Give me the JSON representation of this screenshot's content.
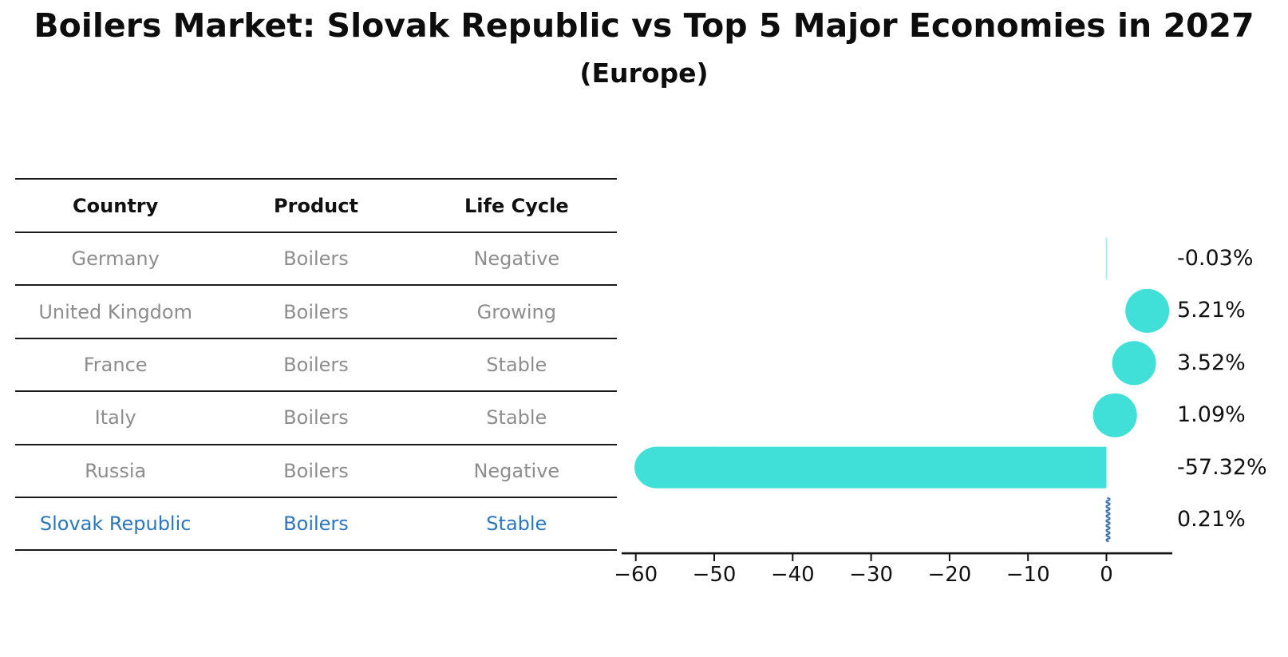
{
  "title": "Boilers Market: Slovak Republic vs Top 5 Major Economies in 2027",
  "subtitle": "(Europe)",
  "table": {
    "headers": [
      "Country",
      "Product",
      "Life Cycle"
    ],
    "rows": [
      {
        "country": "Germany",
        "product": "Boilers",
        "life_cycle": "Negative",
        "highlight": false
      },
      {
        "country": "United Kingdom",
        "product": "Boilers",
        "life_cycle": "Growing",
        "highlight": false
      },
      {
        "country": "France",
        "product": "Boilers",
        "life_cycle": "Stable",
        "highlight": false
      },
      {
        "country": "Italy",
        "product": "Boilers",
        "life_cycle": "Stable",
        "highlight": false
      },
      {
        "country": "Russia",
        "product": "Boilers",
        "life_cycle": "Negative",
        "highlight": false
      },
      {
        "country": "Slovak Republic",
        "product": "Boilers",
        "life_cycle": "Stable",
        "highlight": true
      }
    ]
  },
  "chart_data": {
    "type": "bar",
    "orientation": "horizontal",
    "title": "Boilers Market: Slovak Republic vs Top 5 Major Economies in 2027",
    "subtitle": "(Europe)",
    "categories": [
      "Germany",
      "United Kingdom",
      "France",
      "Italy",
      "Russia",
      "Slovak Republic"
    ],
    "values": [
      -0.03,
      5.21,
      3.52,
      1.09,
      -57.32,
      0.21
    ],
    "labels": [
      "-0.03%",
      "5.21%",
      "3.52%",
      "1.09%",
      "-57.32%",
      "0.21%"
    ],
    "x_tick_values": [
      -60,
      -50,
      -40,
      -30,
      -20,
      -10,
      0
    ],
    "x_ticks": [
      "−60",
      "−50",
      "−40",
      "−30",
      "−20",
      "−10",
      "0"
    ],
    "xlim": [
      -61.7,
      8.4
    ],
    "xlabel": "",
    "ylabel": "",
    "grid": false,
    "legend": null,
    "unit": "%"
  },
  "colors": {
    "bar": "#40E0D8",
    "squiggle_blue": "#3f74b3",
    "highlight_blue": "#2a77c0",
    "table_text_gray": "#8d8d8d",
    "line_black": "#1a1a1a",
    "axis_black": "#111111"
  }
}
